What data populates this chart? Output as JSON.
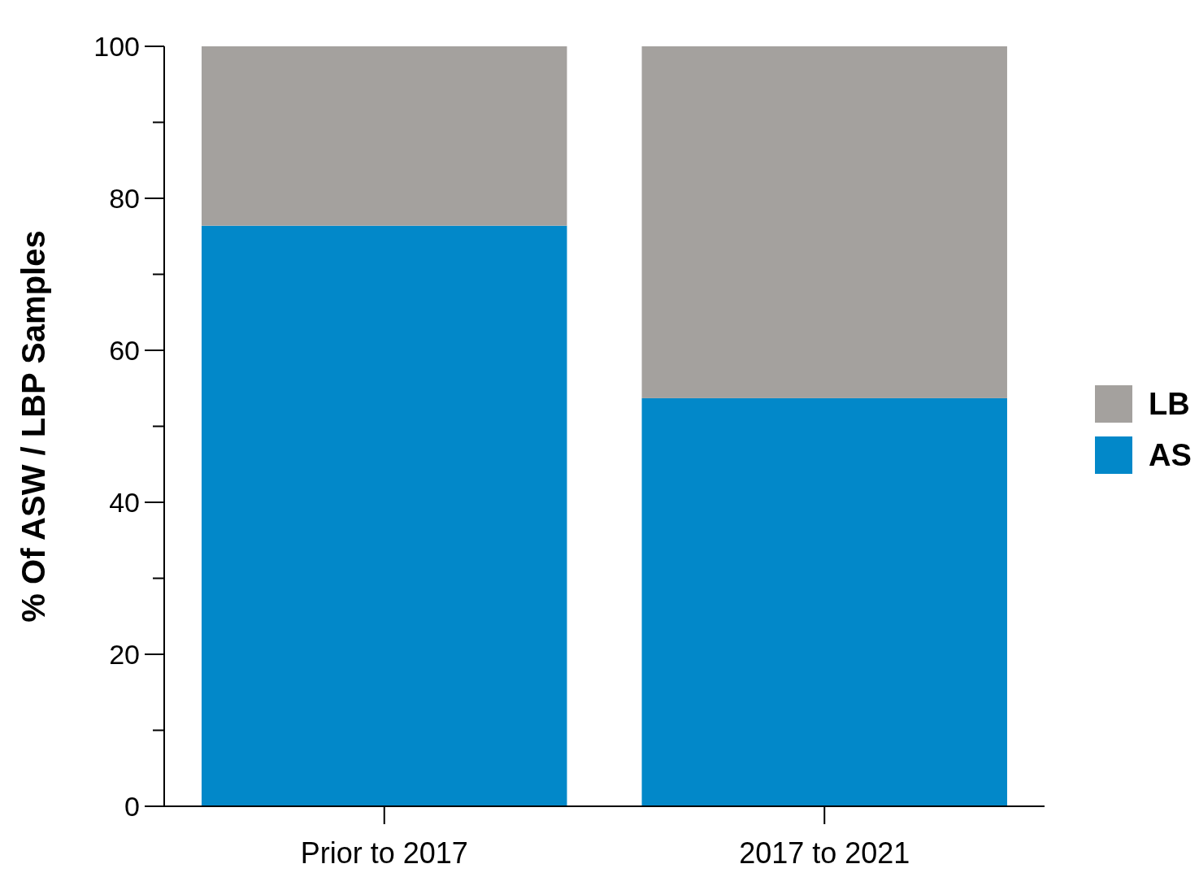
{
  "chart_data": {
    "type": "bar",
    "ylabel": "% Of ASW / LBP Samples",
    "categories": [
      "Prior to 2017",
      "2017 to 2021"
    ],
    "stacked": true,
    "legend": "right",
    "series": [
      {
        "name": "AS",
        "color": "#0288c9",
        "values": [
          76.4,
          53.7
        ]
      },
      {
        "name": "LB",
        "color": "#a4a19e",
        "values": [
          23.6,
          46.3
        ]
      }
    ],
    "ylim": [
      0,
      100
    ],
    "yticks": [
      0,
      {
        "value": 10,
        "label": null
      },
      20,
      {
        "value": 30,
        "label": null
      },
      40,
      {
        "value": 50,
        "label": null
      },
      60,
      {
        "value": 70,
        "label": null
      },
      80,
      {
        "value": 90,
        "label": null
      },
      100
    ],
    "grid": false
  }
}
